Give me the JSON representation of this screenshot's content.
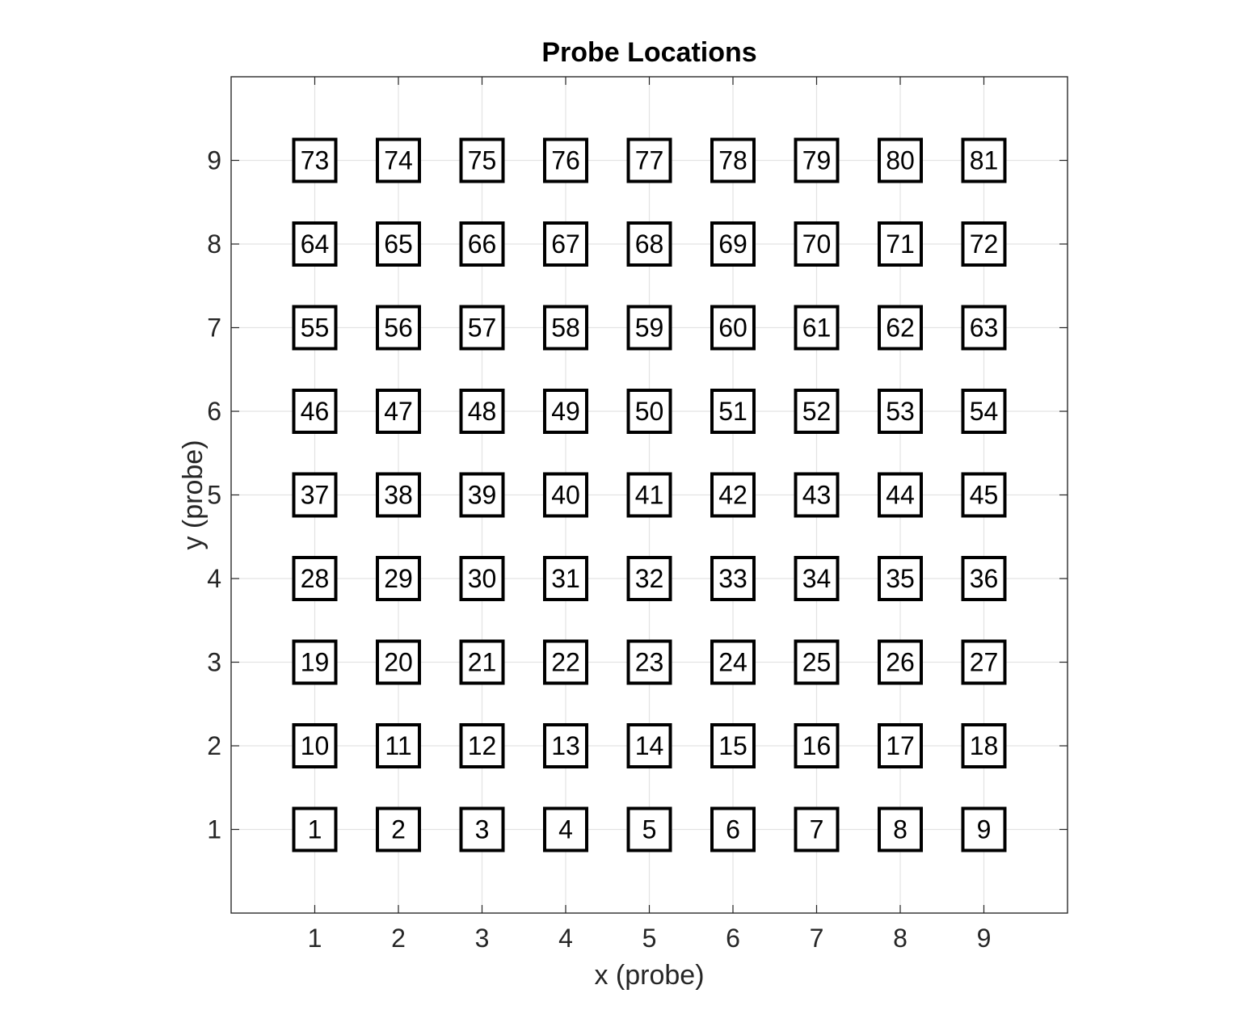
{
  "chart_data": {
    "type": "scatter",
    "title": "Probe Locations",
    "xlabel": "x (probe)",
    "ylabel": "y (probe)",
    "xlim": [
      0,
      10
    ],
    "ylim": [
      0,
      10
    ],
    "xticks": [
      1,
      2,
      3,
      4,
      5,
      6,
      7,
      8,
      9
    ],
    "yticks": [
      1,
      2,
      3,
      4,
      5,
      6,
      7,
      8,
      9
    ],
    "grid": true,
    "marker": "square",
    "grid_size": 9,
    "colors": {
      "marker_edge": "#000000",
      "grid": "#e3e3e3",
      "axes": "#262626"
    },
    "points": [
      {
        "x": 1,
        "y": 1,
        "label": "1"
      },
      {
        "x": 2,
        "y": 1,
        "label": "2"
      },
      {
        "x": 3,
        "y": 1,
        "label": "3"
      },
      {
        "x": 4,
        "y": 1,
        "label": "4"
      },
      {
        "x": 5,
        "y": 1,
        "label": "5"
      },
      {
        "x": 6,
        "y": 1,
        "label": "6"
      },
      {
        "x": 7,
        "y": 1,
        "label": "7"
      },
      {
        "x": 8,
        "y": 1,
        "label": "8"
      },
      {
        "x": 9,
        "y": 1,
        "label": "9"
      },
      {
        "x": 1,
        "y": 2,
        "label": "10"
      },
      {
        "x": 2,
        "y": 2,
        "label": "11"
      },
      {
        "x": 3,
        "y": 2,
        "label": "12"
      },
      {
        "x": 4,
        "y": 2,
        "label": "13"
      },
      {
        "x": 5,
        "y": 2,
        "label": "14"
      },
      {
        "x": 6,
        "y": 2,
        "label": "15"
      },
      {
        "x": 7,
        "y": 2,
        "label": "16"
      },
      {
        "x": 8,
        "y": 2,
        "label": "17"
      },
      {
        "x": 9,
        "y": 2,
        "label": "18"
      },
      {
        "x": 1,
        "y": 3,
        "label": "19"
      },
      {
        "x": 2,
        "y": 3,
        "label": "20"
      },
      {
        "x": 3,
        "y": 3,
        "label": "21"
      },
      {
        "x": 4,
        "y": 3,
        "label": "22"
      },
      {
        "x": 5,
        "y": 3,
        "label": "23"
      },
      {
        "x": 6,
        "y": 3,
        "label": "24"
      },
      {
        "x": 7,
        "y": 3,
        "label": "25"
      },
      {
        "x": 8,
        "y": 3,
        "label": "26"
      },
      {
        "x": 9,
        "y": 3,
        "label": "27"
      },
      {
        "x": 1,
        "y": 4,
        "label": "28"
      },
      {
        "x": 2,
        "y": 4,
        "label": "29"
      },
      {
        "x": 3,
        "y": 4,
        "label": "30"
      },
      {
        "x": 4,
        "y": 4,
        "label": "31"
      },
      {
        "x": 5,
        "y": 4,
        "label": "32"
      },
      {
        "x": 6,
        "y": 4,
        "label": "33"
      },
      {
        "x": 7,
        "y": 4,
        "label": "34"
      },
      {
        "x": 8,
        "y": 4,
        "label": "35"
      },
      {
        "x": 9,
        "y": 4,
        "label": "36"
      },
      {
        "x": 1,
        "y": 5,
        "label": "37"
      },
      {
        "x": 2,
        "y": 5,
        "label": "38"
      },
      {
        "x": 3,
        "y": 5,
        "label": "39"
      },
      {
        "x": 4,
        "y": 5,
        "label": "40"
      },
      {
        "x": 5,
        "y": 5,
        "label": "41"
      },
      {
        "x": 6,
        "y": 5,
        "label": "42"
      },
      {
        "x": 7,
        "y": 5,
        "label": "43"
      },
      {
        "x": 8,
        "y": 5,
        "label": "44"
      },
      {
        "x": 9,
        "y": 5,
        "label": "45"
      },
      {
        "x": 1,
        "y": 6,
        "label": "46"
      },
      {
        "x": 2,
        "y": 6,
        "label": "47"
      },
      {
        "x": 3,
        "y": 6,
        "label": "48"
      },
      {
        "x": 4,
        "y": 6,
        "label": "49"
      },
      {
        "x": 5,
        "y": 6,
        "label": "50"
      },
      {
        "x": 6,
        "y": 6,
        "label": "51"
      },
      {
        "x": 7,
        "y": 6,
        "label": "52"
      },
      {
        "x": 8,
        "y": 6,
        "label": "53"
      },
      {
        "x": 9,
        "y": 6,
        "label": "54"
      },
      {
        "x": 1,
        "y": 7,
        "label": "55"
      },
      {
        "x": 2,
        "y": 7,
        "label": "56"
      },
      {
        "x": 3,
        "y": 7,
        "label": "57"
      },
      {
        "x": 4,
        "y": 7,
        "label": "58"
      },
      {
        "x": 5,
        "y": 7,
        "label": "59"
      },
      {
        "x": 6,
        "y": 7,
        "label": "60"
      },
      {
        "x": 7,
        "y": 7,
        "label": "61"
      },
      {
        "x": 8,
        "y": 7,
        "label": "62"
      },
      {
        "x": 9,
        "y": 7,
        "label": "63"
      },
      {
        "x": 1,
        "y": 8,
        "label": "64"
      },
      {
        "x": 2,
        "y": 8,
        "label": "65"
      },
      {
        "x": 3,
        "y": 8,
        "label": "66"
      },
      {
        "x": 4,
        "y": 8,
        "label": "67"
      },
      {
        "x": 5,
        "y": 8,
        "label": "68"
      },
      {
        "x": 6,
        "y": 8,
        "label": "69"
      },
      {
        "x": 7,
        "y": 8,
        "label": "70"
      },
      {
        "x": 8,
        "y": 8,
        "label": "71"
      },
      {
        "x": 9,
        "y": 8,
        "label": "72"
      },
      {
        "x": 1,
        "y": 9,
        "label": "73"
      },
      {
        "x": 2,
        "y": 9,
        "label": "74"
      },
      {
        "x": 3,
        "y": 9,
        "label": "75"
      },
      {
        "x": 4,
        "y": 9,
        "label": "76"
      },
      {
        "x": 5,
        "y": 9,
        "label": "77"
      },
      {
        "x": 6,
        "y": 9,
        "label": "78"
      },
      {
        "x": 7,
        "y": 9,
        "label": "79"
      },
      {
        "x": 8,
        "y": 9,
        "label": "80"
      },
      {
        "x": 9,
        "y": 9,
        "label": "81"
      }
    ]
  }
}
